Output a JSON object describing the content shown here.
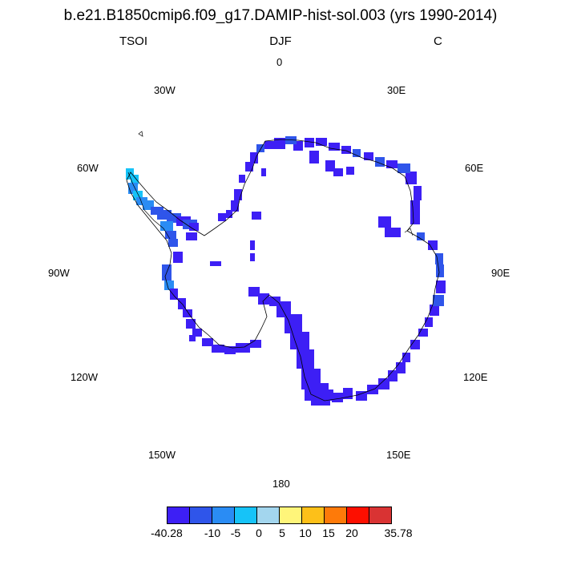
{
  "title": "b.e21.B1850cmip6.f09_g17.DAMIP-hist-sol.003 (yrs 1990-2014)",
  "left_label": "TSOI",
  "center_label": "DJF",
  "right_label": "C",
  "longitude_labels": {
    "lon_0": "0",
    "lon_30e": "30E",
    "lon_60e": "60E",
    "lon_90e": "90E",
    "lon_120e": "120E",
    "lon_150e": "150E",
    "lon_180": "180",
    "lon_150w": "150W",
    "lon_120w": "120W",
    "lon_90w": "90W",
    "lon_60w": "60W",
    "lon_30w": "30W"
  },
  "colorbar": {
    "colors": [
      "#3d1ff5",
      "#2f55ea",
      "#2a8cf4",
      "#16c3f8",
      "#a3d6ee",
      "#fff57a",
      "#fdc019",
      "#fe7a09",
      "#fd0f00",
      "#d93333"
    ],
    "labels": [
      "-40.28",
      "-10",
      "-5",
      "0",
      "5",
      "10",
      "15",
      "20",
      "35.78"
    ]
  },
  "map": {
    "projection": "south polar stereographic",
    "variable": "TSOI",
    "dominant_colors": [
      "#3d1ff5",
      "#2f55ea",
      "#2a8cf4",
      "#16c3f8"
    ]
  }
}
